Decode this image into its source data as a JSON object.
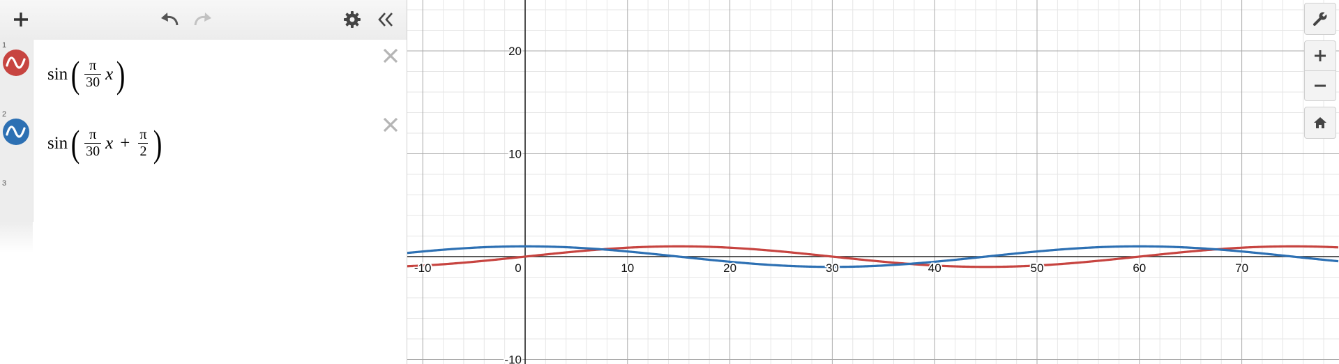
{
  "expressions": [
    {
      "index": "1",
      "color": "#c74440",
      "fn": "sin",
      "num": "π",
      "den": "30",
      "var": "x",
      "plus": "",
      "num2": "",
      "den2": ""
    },
    {
      "index": "2",
      "color": "#2d70b3",
      "fn": "sin",
      "num": "π",
      "den": "30",
      "var": "x",
      "plus": "+",
      "num2": "π",
      "den2": "2"
    },
    {
      "index": "3"
    }
  ],
  "axes": {
    "x_ticks": [
      "-10",
      "0",
      "10",
      "20",
      "30",
      "40",
      "50",
      "60",
      "70"
    ],
    "y_ticks": [
      "20",
      "10",
      "-10"
    ]
  },
  "icons": {
    "add": "plus-icon",
    "undo": "undo-icon",
    "redo": "redo-icon",
    "settings": "gear-icon",
    "collapse": "double-chevron-left-icon",
    "close": "close-icon",
    "graph_settings": "wrench-icon",
    "zoom_in": "plus-icon",
    "zoom_out": "minus-icon",
    "home": "home-icon"
  },
  "colors": {
    "red": "#c74440",
    "blue": "#2d70b3"
  }
}
